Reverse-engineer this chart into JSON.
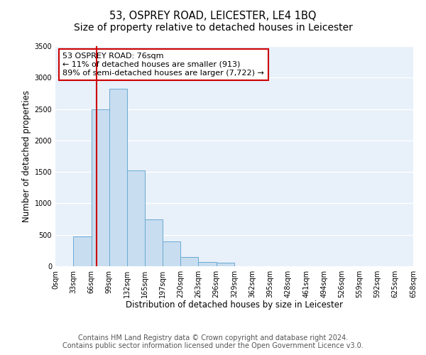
{
  "title": "53, OSPREY ROAD, LEICESTER, LE4 1BQ",
  "subtitle": "Size of property relative to detached houses in Leicester",
  "xlabel": "Distribution of detached houses by size in Leicester",
  "ylabel": "Number of detached properties",
  "bin_edges": [
    0,
    33,
    66,
    99,
    132,
    165,
    197,
    230,
    263,
    296,
    329,
    362,
    395,
    428,
    461,
    494,
    526,
    559,
    592,
    625,
    658
  ],
  "bar_heights": [
    0,
    470,
    2500,
    2820,
    1520,
    750,
    390,
    150,
    70,
    55,
    0,
    0,
    0,
    0,
    0,
    0,
    0,
    0,
    0,
    0
  ],
  "bar_color": "#c8ddf0",
  "bar_edgecolor": "#6aaad4",
  "property_line_x": 76,
  "ylim": [
    0,
    3500
  ],
  "yticks": [
    0,
    500,
    1000,
    1500,
    2000,
    2500,
    3000,
    3500
  ],
  "xtick_labels": [
    "0sqm",
    "33sqm",
    "66sqm",
    "99sqm",
    "132sqm",
    "165sqm",
    "197sqm",
    "230sqm",
    "263sqm",
    "296sqm",
    "329sqm",
    "362sqm",
    "395sqm",
    "428sqm",
    "461sqm",
    "494sqm",
    "526sqm",
    "559sqm",
    "592sqm",
    "625sqm",
    "658sqm"
  ],
  "annotation_title": "53 OSPREY ROAD: 76sqm",
  "annotation_line1": "← 11% of detached houses are smaller (913)",
  "annotation_line2": "89% of semi-detached houses are larger (7,722) →",
  "annotation_box_facecolor": "#ffffff",
  "annotation_border_color": "#cc0000",
  "vline_color": "#cc0000",
  "footer1": "Contains HM Land Registry data © Crown copyright and database right 2024.",
  "footer2": "Contains public sector information licensed under the Open Government Licence v3.0.",
  "fig_background_color": "#ffffff",
  "plot_background": "#e8f0fa",
  "grid_color": "#ffffff",
  "title_fontsize": 10.5,
  "xlabel_fontsize": 8.5,
  "ylabel_fontsize": 8.5,
  "tick_fontsize": 7,
  "footer_fontsize": 7
}
